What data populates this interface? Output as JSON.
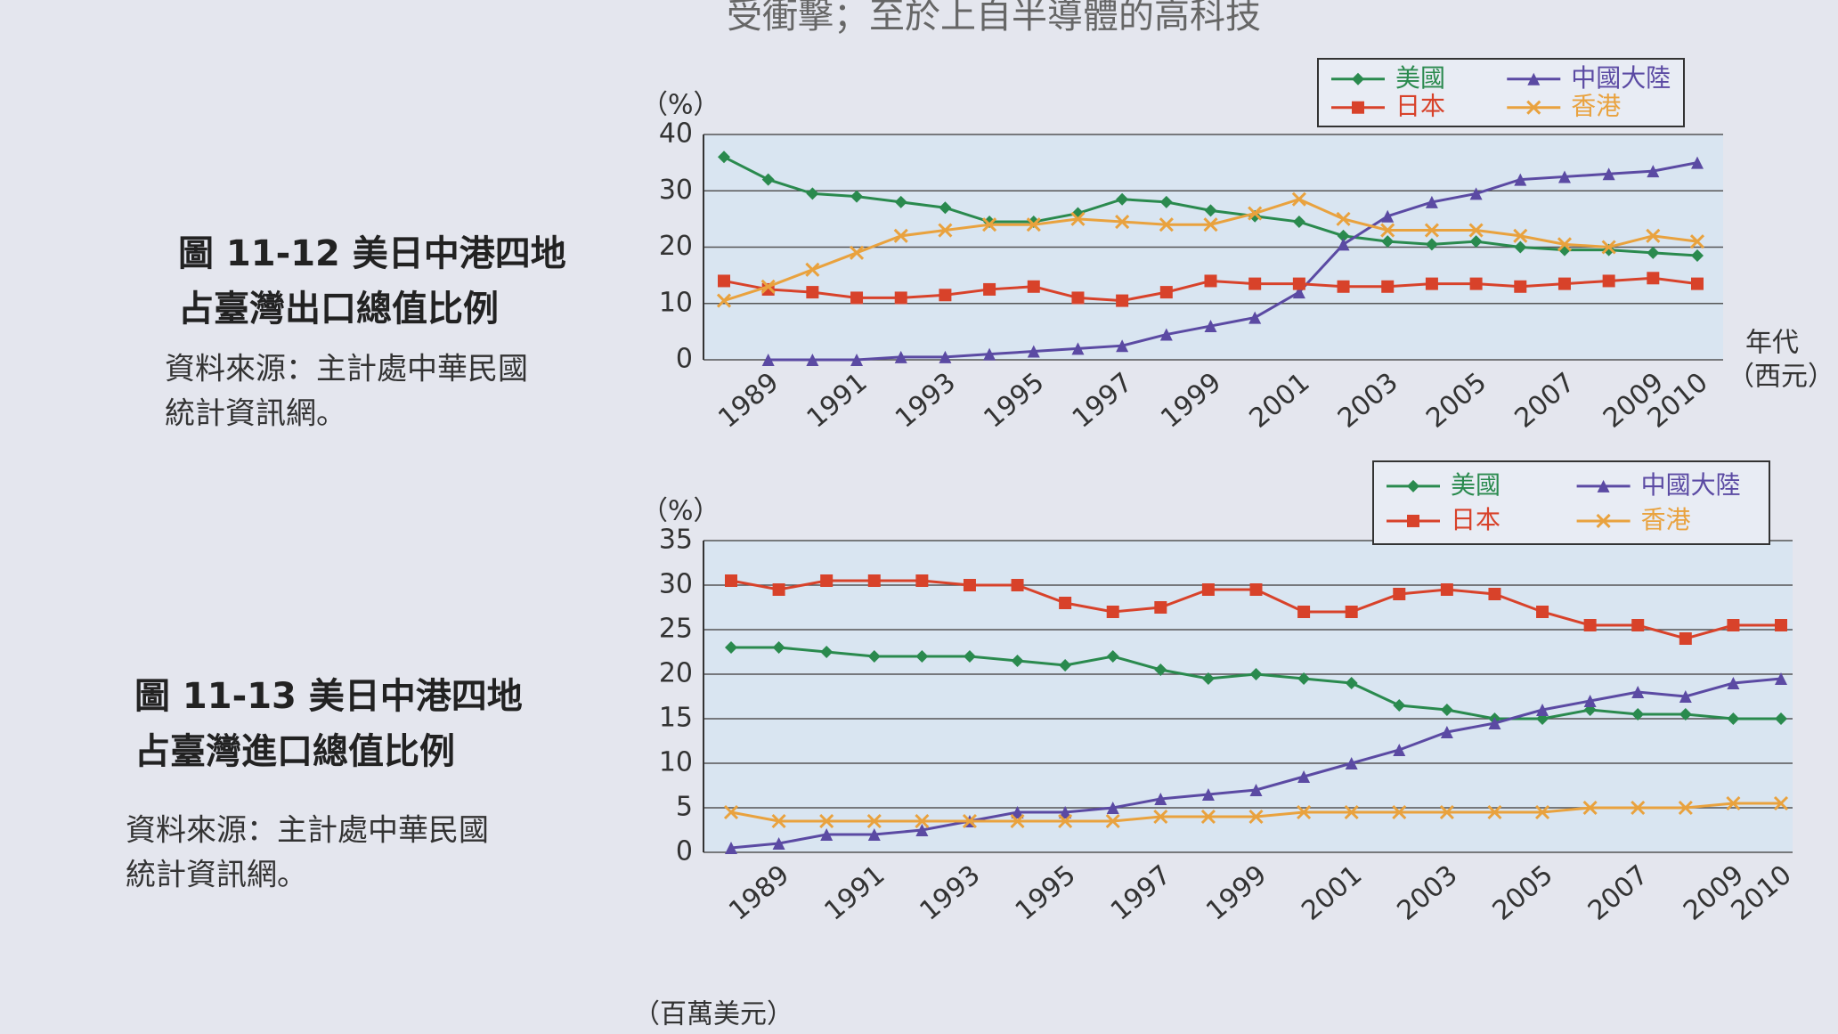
{
  "page": {
    "top_text": "受衝擊；至於上自半導體的高科技",
    "bottom_text": "（百萬美元）"
  },
  "captions": [
    {
      "title_lines": [
        "圖 11-12  美日中港四地",
        "占臺灣出口總值比例"
      ],
      "source_lines": [
        "資料來源：主計處中華民國",
        "統計資訊網。"
      ]
    },
    {
      "title_lines": [
        "圖 11-13  美日中港四地",
        "占臺灣進口總值比例"
      ],
      "source_lines": [
        "資料來源：主計處中華民國",
        "統計資訊網。"
      ]
    }
  ],
  "chart_data": [
    {
      "type": "line",
      "y_label": "（%）",
      "x_label_lines": [
        "年代",
        "（西元）"
      ],
      "categories": [
        null,
        "1989",
        null,
        "1991",
        null,
        "1993",
        null,
        "1995",
        null,
        "1997",
        null,
        "1999",
        null,
        "2001",
        null,
        "2003",
        null,
        "2005",
        null,
        "2007",
        null,
        "2009",
        "2010"
      ],
      "ylim": [
        0,
        40
      ],
      "yticks": [
        0,
        10,
        20,
        30,
        40
      ],
      "grid": true,
      "legend": "top-right",
      "series": [
        {
          "name": "美國",
          "color": "#2a8a4e",
          "marker": "diamond",
          "values": [
            36,
            32,
            29.5,
            29,
            28,
            27,
            24.5,
            24.5,
            26,
            28.5,
            28,
            26.5,
            25.5,
            24.5,
            22,
            21,
            20.5,
            21,
            20,
            19.5,
            19.5,
            19,
            18.5
          ]
        },
        {
          "name": "中國大陸",
          "color": "#5b4aa3",
          "marker": "triangle",
          "values": [
            null,
            0,
            0,
            0,
            0.5,
            0.5,
            1,
            1.5,
            2,
            2.5,
            4.5,
            6,
            7.5,
            12,
            20.5,
            25.5,
            28,
            29.5,
            32,
            32.5,
            33,
            33.5,
            35
          ]
        },
        {
          "name": "日本",
          "color": "#d8422a",
          "marker": "square",
          "values": [
            14,
            12.5,
            12,
            11,
            11,
            11.5,
            12.5,
            13,
            11,
            10.5,
            12,
            14,
            13.5,
            13.5,
            13,
            13,
            13.5,
            13.5,
            13,
            13.5,
            14,
            14.5,
            13.5
          ]
        },
        {
          "name": "香港",
          "color": "#e9a23e",
          "marker": "x",
          "values": [
            10.5,
            13,
            16,
            19,
            22,
            23,
            24,
            24,
            25,
            24.5,
            24,
            24,
            26,
            28.5,
            25,
            23,
            23,
            23,
            22,
            20.5,
            20,
            22,
            21
          ]
        }
      ]
    },
    {
      "type": "line",
      "y_label": "（%）",
      "categories": [
        null,
        "1989",
        null,
        "1991",
        null,
        "1993",
        null,
        "1995",
        null,
        "1997",
        null,
        "1999",
        null,
        "2001",
        null,
        "2003",
        null,
        "2005",
        null,
        "2007",
        null,
        "2009",
        "2010"
      ],
      "ylim": [
        0,
        35
      ],
      "yticks": [
        0,
        5,
        10,
        15,
        20,
        25,
        30,
        35
      ],
      "grid": true,
      "legend": "top-right",
      "series": [
        {
          "name": "美國",
          "color": "#2a8a4e",
          "marker": "diamond",
          "values": [
            23,
            23,
            22.5,
            22,
            22,
            22,
            21.5,
            21,
            22,
            20.5,
            19.5,
            20,
            19.5,
            19,
            16.5,
            16,
            15,
            15,
            16,
            15.5,
            15.5,
            15,
            15
          ]
        },
        {
          "name": "中國大陸",
          "color": "#5b4aa3",
          "marker": "triangle",
          "values": [
            0.5,
            1,
            2,
            2,
            2.5,
            3.5,
            4.5,
            4.5,
            5,
            6,
            6.5,
            7,
            8.5,
            10,
            11.5,
            13.5,
            14.5,
            16,
            17,
            18,
            17.5,
            19,
            19.5
          ]
        },
        {
          "name": "日本",
          "color": "#d8422a",
          "marker": "square",
          "values": [
            30.5,
            29.5,
            30.5,
            30.5,
            30.5,
            30,
            30,
            28,
            27,
            27.5,
            29.5,
            29.5,
            27,
            27,
            29,
            29.5,
            29,
            27,
            25.5,
            25.5,
            24,
            25.5,
            25.5
          ]
        },
        {
          "name": "香港",
          "color": "#e9a23e",
          "marker": "x",
          "values": [
            4.5,
            3.5,
            3.5,
            3.5,
            3.5,
            3.5,
            3.5,
            3.5,
            3.5,
            4,
            4,
            4,
            4.5,
            4.5,
            4.5,
            4.5,
            4.5,
            4.5,
            5,
            5,
            5,
            5.5,
            5.5
          ]
        }
      ]
    }
  ]
}
